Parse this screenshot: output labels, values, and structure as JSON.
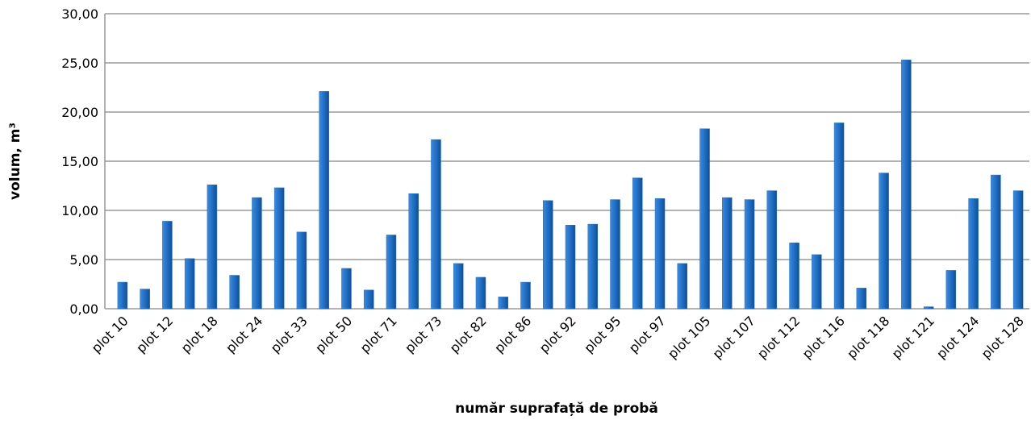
{
  "chart_data": {
    "type": "bar",
    "x_label": "număr suprafață de probă",
    "y_label": "volum, m³",
    "categories": [
      "plot 10",
      null,
      "plot 12",
      null,
      "plot 18",
      null,
      "plot 24",
      null,
      "plot 33",
      null,
      "plot 50",
      null,
      "plot 71",
      null,
      "plot 73",
      null,
      "plot 82",
      null,
      "plot 86",
      null,
      "plot 92",
      null,
      "plot 95",
      null,
      "plot 97",
      null,
      "plot 105",
      null,
      "plot 107",
      null,
      "plot 112",
      null,
      "plot 116",
      null,
      "plot 118",
      null,
      "plot 121",
      null,
      "plot 124",
      null,
      "plot 128"
    ],
    "values": [
      2.7,
      2.0,
      8.9,
      5.1,
      12.6,
      3.4,
      11.3,
      12.3,
      7.8,
      22.1,
      4.1,
      1.9,
      7.5,
      11.7,
      17.2,
      4.6,
      3.2,
      1.2,
      2.7,
      11.0,
      8.5,
      8.6,
      11.1,
      13.3,
      11.2,
      4.6,
      18.3,
      11.3,
      11.1,
      12.0,
      6.7,
      5.5,
      18.9,
      2.1,
      13.8,
      25.3,
      0.2,
      3.9,
      11.2,
      13.6,
      12.0
    ],
    "color": "#1f6fc5",
    "ylim": [
      0,
      30
    ],
    "yticks": [
      {
        "value": 0,
        "label": "0,00"
      },
      {
        "value": 5,
        "label": "5,00"
      },
      {
        "value": 10,
        "label": "10,00"
      },
      {
        "value": 15,
        "label": "15,00"
      },
      {
        "value": 20,
        "label": "20,00"
      },
      {
        "value": 25,
        "label": "25,00"
      },
      {
        "value": 30,
        "label": "30,00"
      }
    ],
    "grid": true
  }
}
